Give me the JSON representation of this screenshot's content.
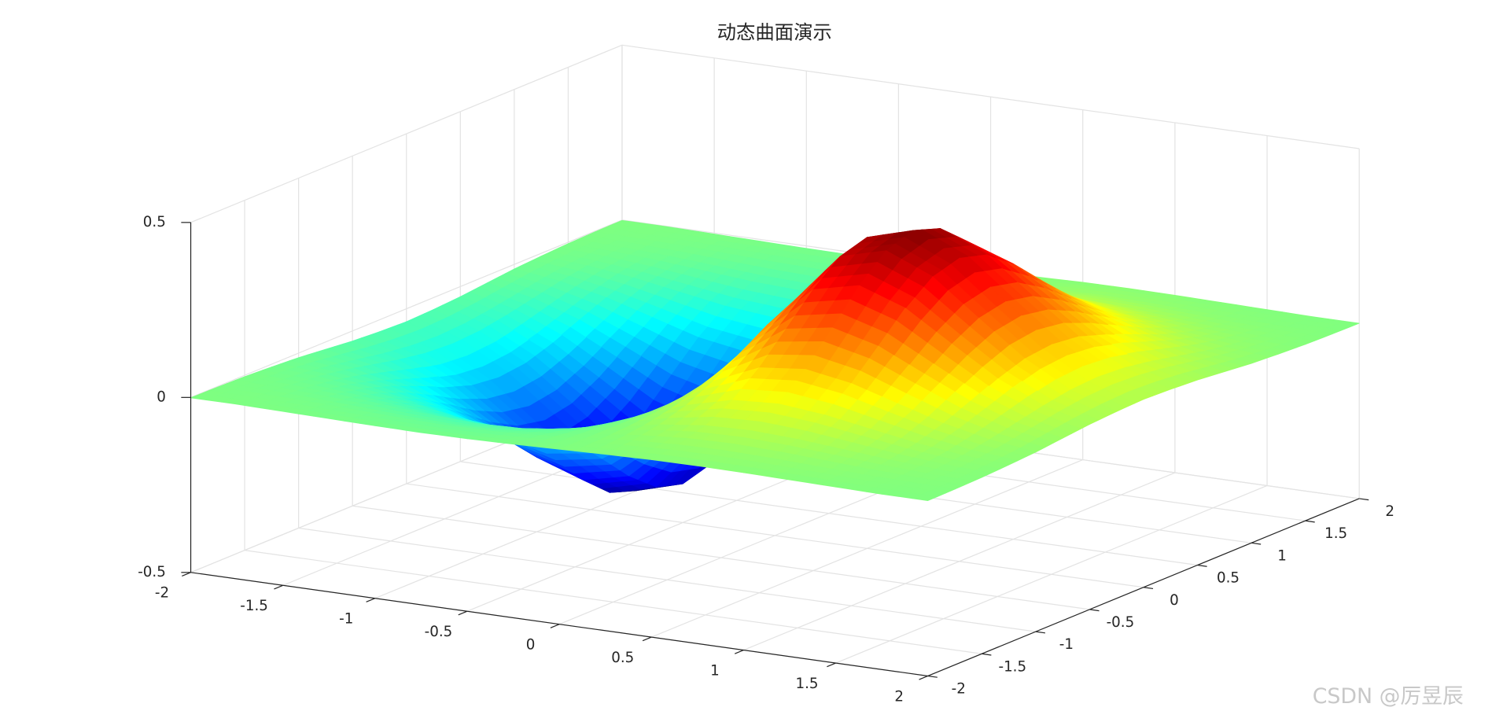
{
  "chart_data": {
    "type": "surface",
    "title": "动态曲面演示",
    "x": [
      -2,
      -1.75,
      -1.5,
      -1.25,
      -1,
      -0.75,
      -0.5,
      -0.25,
      0,
      0.25,
      0.5,
      0.75,
      1,
      1.25,
      1.5,
      1.75,
      2
    ],
    "y": [
      -2,
      -1.75,
      -1.5,
      -1.25,
      -1,
      -0.75,
      -0.5,
      -0.25,
      0,
      0.25,
      0.5,
      0.75,
      1,
      1.25,
      1.5,
      1.75,
      2
    ],
    "z": [
      [
        -0.001,
        -0.001,
        -0.003,
        -0.005,
        -0.007,
        -0.008,
        -0.007,
        -0.004,
        0,
        0.004,
        0.007,
        0.008,
        0.007,
        0.005,
        0.003,
        0.001,
        0.001
      ],
      [
        -0.002,
        -0.004,
        -0.007,
        -0.012,
        -0.017,
        -0.02,
        -0.018,
        -0.011,
        0,
        0.011,
        0.018,
        0.02,
        0.017,
        0.012,
        0.007,
        0.004,
        0.002
      ],
      [
        -0.004,
        -0.009,
        -0.017,
        -0.028,
        -0.039,
        -0.045,
        -0.041,
        -0.025,
        0,
        0.025,
        0.041,
        0.045,
        0.039,
        0.028,
        0.017,
        0.009,
        0.004
      ],
      [
        -0.008,
        -0.017,
        -0.033,
        -0.055,
        -0.077,
        -0.09,
        -0.082,
        -0.049,
        0,
        0.049,
        0.082,
        0.09,
        0.077,
        0.055,
        0.033,
        0.017,
        0.008
      ],
      [
        -0.013,
        -0.03,
        -0.058,
        -0.096,
        -0.135,
        -0.157,
        -0.143,
        -0.086,
        0,
        0.086,
        0.143,
        0.157,
        0.135,
        0.096,
        0.058,
        0.03,
        0.013
      ],
      [
        -0.021,
        -0.047,
        -0.09,
        -0.149,
        -0.21,
        -0.244,
        -0.222,
        -0.134,
        0,
        0.134,
        0.222,
        0.244,
        0.21,
        0.149,
        0.09,
        0.047,
        0.021
      ],
      [
        -0.029,
        -0.064,
        -0.123,
        -0.204,
        -0.287,
        -0.333,
        -0.303,
        -0.183,
        0,
        0.183,
        0.303,
        0.333,
        0.287,
        0.204,
        0.123,
        0.064,
        0.029
      ],
      [
        -0.034,
        -0.077,
        -0.149,
        -0.246,
        -0.346,
        -0.401,
        -0.366,
        -0.221,
        0,
        0.221,
        0.366,
        0.401,
        0.346,
        0.246,
        0.149,
        0.077,
        0.034
      ],
      [
        -0.037,
        -0.082,
        -0.158,
        -0.262,
        -0.368,
        -0.427,
        -0.389,
        -0.235,
        0,
        0.235,
        0.389,
        0.427,
        0.368,
        0.262,
        0.158,
        0.082,
        0.037
      ],
      [
        -0.034,
        -0.077,
        -0.149,
        -0.246,
        -0.346,
        -0.401,
        -0.366,
        -0.221,
        0,
        0.221,
        0.366,
        0.401,
        0.346,
        0.246,
        0.149,
        0.077,
        0.034
      ],
      [
        -0.029,
        -0.064,
        -0.123,
        -0.204,
        -0.287,
        -0.333,
        -0.303,
        -0.183,
        0,
        0.183,
        0.303,
        0.333,
        0.287,
        0.204,
        0.123,
        0.064,
        0.029
      ],
      [
        -0.021,
        -0.047,
        -0.09,
        -0.149,
        -0.21,
        -0.244,
        -0.222,
        -0.134,
        0,
        0.134,
        0.222,
        0.244,
        0.21,
        0.149,
        0.09,
        0.047,
        0.021
      ],
      [
        -0.013,
        -0.03,
        -0.058,
        -0.096,
        -0.135,
        -0.157,
        -0.143,
        -0.086,
        0,
        0.086,
        0.143,
        0.157,
        0.135,
        0.096,
        0.058,
        0.03,
        0.013
      ],
      [
        -0.008,
        -0.017,
        -0.033,
        -0.055,
        -0.077,
        -0.09,
        -0.082,
        -0.049,
        0,
        0.049,
        0.082,
        0.09,
        0.077,
        0.055,
        0.033,
        0.017,
        0.008
      ],
      [
        -0.004,
        -0.009,
        -0.017,
        -0.028,
        -0.039,
        -0.045,
        -0.041,
        -0.025,
        0,
        0.025,
        0.041,
        0.045,
        0.039,
        0.028,
        0.017,
        0.009,
        0.004
      ],
      [
        -0.002,
        -0.004,
        -0.007,
        -0.012,
        -0.017,
        -0.02,
        -0.018,
        -0.011,
        0,
        0.011,
        0.018,
        0.02,
        0.017,
        0.012,
        0.007,
        0.004,
        0.002
      ],
      [
        -0.001,
        -0.001,
        -0.003,
        -0.005,
        -0.007,
        -0.008,
        -0.007,
        -0.004,
        0,
        0.004,
        0.007,
        0.008,
        0.007,
        0.005,
        0.003,
        0.001,
        0.001
      ]
    ],
    "xlim": [
      -2,
      2
    ],
    "ylim": [
      -2,
      2
    ],
    "zlim": [
      -0.5,
      0.5
    ],
    "xticks": [
      -2,
      -1.5,
      -1,
      -0.5,
      0,
      0.5,
      1,
      1.5,
      2
    ],
    "yticks": [
      -2,
      -1.5,
      -1,
      -0.5,
      0,
      0.5,
      1,
      1.5,
      2
    ],
    "zticks": [
      -0.5,
      0,
      0.5
    ],
    "grid": true,
    "colormap": "jet"
  },
  "watermark": "CSDN @厉昱辰"
}
